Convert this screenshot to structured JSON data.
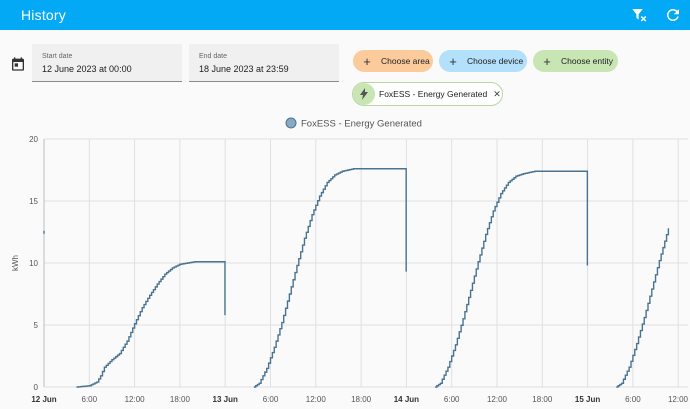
{
  "header": {
    "title": "History",
    "actions": [
      {
        "icon": "filter-remove-icon"
      },
      {
        "icon": "refresh-icon"
      }
    ],
    "color": "#03a9f4"
  },
  "date_range": {
    "icon": "calendar-icon",
    "start_label": "Start date",
    "start_value": "12 June 2023 at 00:00",
    "end_label": "End date",
    "end_value": "18 June 2023 at 23:59"
  },
  "target_picker": {
    "choose_area": "Choose area",
    "choose_device": "Choose device",
    "choose_entity": "Choose entity",
    "selected_entity": "FoxESS - Energy Generated",
    "selected_icon": "lightning-bolt-icon"
  },
  "chart_data": {
    "type": "line",
    "step": true,
    "series": [
      {
        "name": "FoxESS - Energy Generated",
        "color": "#4a7391",
        "points": [
          [
            0,
            12.6
          ],
          [
            4.3,
            0
          ],
          [
            6,
            0.1
          ],
          [
            7,
            0.4
          ],
          [
            7.5,
            0.9
          ],
          [
            8,
            1.6
          ],
          [
            9,
            2.2
          ],
          [
            10,
            2.7
          ],
          [
            11,
            3.7
          ],
          [
            12,
            5.1
          ],
          [
            13,
            6.4
          ],
          [
            14,
            7.4
          ],
          [
            15,
            8.3
          ],
          [
            16,
            9.1
          ],
          [
            17,
            9.6
          ],
          [
            18,
            9.9
          ],
          [
            20,
            10.1
          ],
          [
            23.97,
            10.1
          ],
          [
            23.97,
            5.8
          ],
          [
            27.8,
            0
          ],
          [
            28.5,
            0.3
          ],
          [
            29.5,
            1.5
          ],
          [
            30.5,
            3.2
          ],
          [
            31.5,
            5.2
          ],
          [
            32.5,
            7.5
          ],
          [
            33.5,
            9.8
          ],
          [
            34.5,
            12.0
          ],
          [
            35.5,
            13.9
          ],
          [
            36.5,
            15.4
          ],
          [
            37.5,
            16.5
          ],
          [
            38.5,
            17.1
          ],
          [
            39.5,
            17.4
          ],
          [
            41,
            17.6
          ],
          [
            47.97,
            17.6
          ],
          [
            47.97,
            9.3
          ],
          [
            51.8,
            0
          ],
          [
            52.5,
            0.3
          ],
          [
            53.5,
            1.6
          ],
          [
            54.5,
            3.4
          ],
          [
            55.5,
            5.5
          ],
          [
            56.5,
            7.8
          ],
          [
            57.5,
            10.1
          ],
          [
            58.5,
            12.3
          ],
          [
            59.5,
            14.2
          ],
          [
            60.5,
            15.6
          ],
          [
            61.5,
            16.5
          ],
          [
            62.5,
            17.0
          ],
          [
            63.5,
            17.2
          ],
          [
            65,
            17.4
          ],
          [
            71.97,
            17.4
          ],
          [
            71.97,
            9.8
          ],
          [
            75.8,
            0
          ],
          [
            76.5,
            0.3
          ],
          [
            77.5,
            1.6
          ],
          [
            78.5,
            3.5
          ],
          [
            79.5,
            5.6
          ],
          [
            80.5,
            7.9
          ],
          [
            81.5,
            10.2
          ],
          [
            82.7,
            12.8
          ]
        ]
      }
    ],
    "x_unit": "hours since 12 Jun 00:00",
    "xlim": [
      0,
      82.7
    ],
    "ylim": [
      0,
      20
    ],
    "y_ticks": [
      0,
      5,
      10,
      15,
      20
    ],
    "ylabel": "kWh",
    "x_ticks": [
      {
        "h": 0,
        "label": "12 Jun",
        "bold": true
      },
      {
        "h": 6,
        "label": "6:00"
      },
      {
        "h": 12,
        "label": "12:00"
      },
      {
        "h": 18,
        "label": "18:00"
      },
      {
        "h": 24,
        "label": "13 Jun",
        "bold": true
      },
      {
        "h": 30,
        "label": "6:00"
      },
      {
        "h": 36,
        "label": "12:00"
      },
      {
        "h": 42,
        "label": "18:00"
      },
      {
        "h": 48,
        "label": "14 Jun",
        "bold": true
      },
      {
        "h": 54,
        "label": "6:00"
      },
      {
        "h": 60,
        "label": "12:00"
      },
      {
        "h": 66,
        "label": "18:00"
      },
      {
        "h": 72,
        "label": "15 Jun",
        "bold": true
      },
      {
        "h": 78,
        "label": "6:00"
      },
      {
        "h": 84,
        "label": "12:00"
      }
    ],
    "legend": "top-center",
    "grid": true
  }
}
